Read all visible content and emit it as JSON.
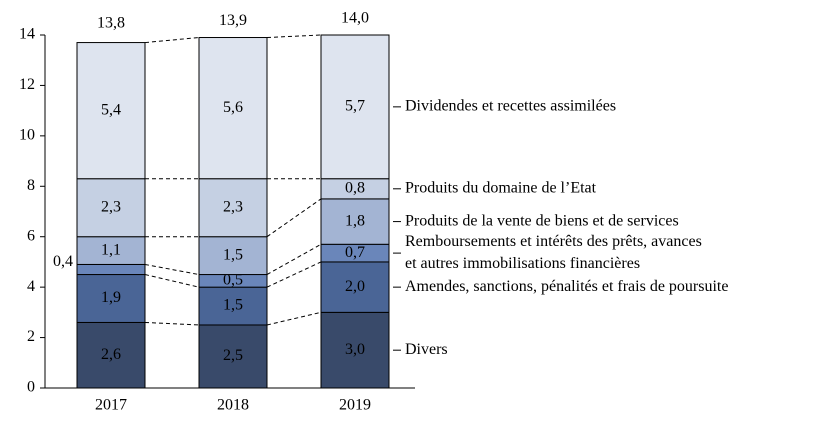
{
  "chart_data": {
    "type": "stacked-bar",
    "categories": [
      "2017",
      "2018",
      "2019"
    ],
    "ylim": [
      0,
      14
    ],
    "yticks": [
      0,
      2,
      4,
      6,
      8,
      10,
      12,
      14
    ],
    "series": [
      {
        "name": [
          "Divers"
        ],
        "color": "#394a6a",
        "values": [
          2.6,
          2.5,
          3.0
        ],
        "value_labels": [
          "2,6",
          "2,5",
          "3,0"
        ]
      },
      {
        "name": [
          "Amendes, sanctions, pénalités et frais de poursuite"
        ],
        "color": "#4a6596",
        "values": [
          1.9,
          1.5,
          2.0
        ],
        "value_labels": [
          "1,9",
          "1,5",
          "2,0"
        ]
      },
      {
        "name": [
          "Remboursements et intérêts des prêts, avances",
          "et autres immobilisations financières"
        ],
        "color": "#6a86ba",
        "values": [
          0.4,
          0.5,
          0.7
        ],
        "value_labels": [
          "0,4",
          "0,5",
          "0,7"
        ]
      },
      {
        "name": [
          "Produits de la vente de biens et de services"
        ],
        "color": "#a3b4d3",
        "values": [
          1.1,
          1.5,
          1.8
        ],
        "value_labels": [
          "1,1",
          "1,5",
          "1,8"
        ]
      },
      {
        "name": [
          "Produits du domaine de l’Etat"
        ],
        "color": "#c5d0e3",
        "values": [
          2.3,
          2.3,
          0.8
        ],
        "value_labels": [
          "2,3",
          "2,3",
          "0,8"
        ]
      },
      {
        "name": [
          "Dividendes et recettes assimilées"
        ],
        "color": "#dee4ef",
        "values": [
          5.4,
          5.6,
          5.7
        ],
        "value_labels": [
          "5,4",
          "5,6",
          "5,7"
        ]
      }
    ],
    "totals": {
      "values": [
        13.8,
        13.9,
        14.0
      ],
      "value_labels": [
        "13,8",
        "13,9",
        "14,0"
      ]
    }
  }
}
